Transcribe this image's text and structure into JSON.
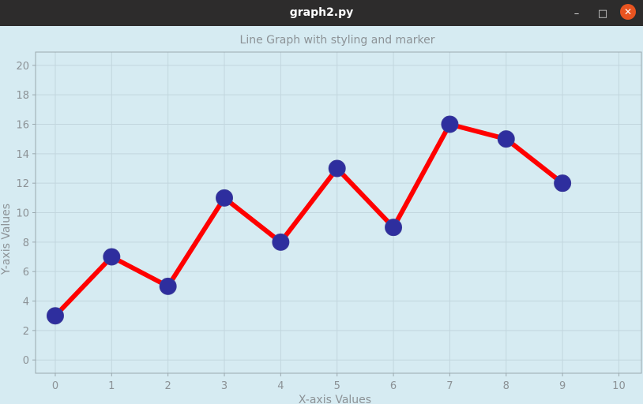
{
  "window": {
    "title": "graph2.py",
    "min_icon": "minimize-icon",
    "max_icon": "maximize-icon",
    "close_icon": "close-icon"
  },
  "chart_data": {
    "type": "line",
    "title": "Line Graph with styling and marker",
    "xlabel": "X-axis Values",
    "ylabel": "Y-axis Values",
    "xlim": [
      -0.35,
      10.4
    ],
    "ylim": [
      -0.9,
      20.9
    ],
    "xticks": [
      0,
      1,
      2,
      3,
      4,
      5,
      6,
      7,
      8,
      9,
      10
    ],
    "yticks": [
      0,
      2,
      4,
      6,
      8,
      10,
      12,
      14,
      16,
      18,
      20
    ],
    "grid": true,
    "series": [
      {
        "x": [
          0,
          1,
          2,
          3,
          4,
          5,
          6,
          7,
          8,
          9
        ],
        "y": [
          3,
          7,
          5,
          11,
          8,
          13,
          9,
          16,
          15,
          12
        ],
        "line_color": "#ff0000",
        "marker_color": "#2e2e9e"
      }
    ],
    "colors": {
      "background": "#d6ebf2",
      "grid": "#c2d6de",
      "axis": "#9aa8ae",
      "text": "#8c9296"
    }
  }
}
